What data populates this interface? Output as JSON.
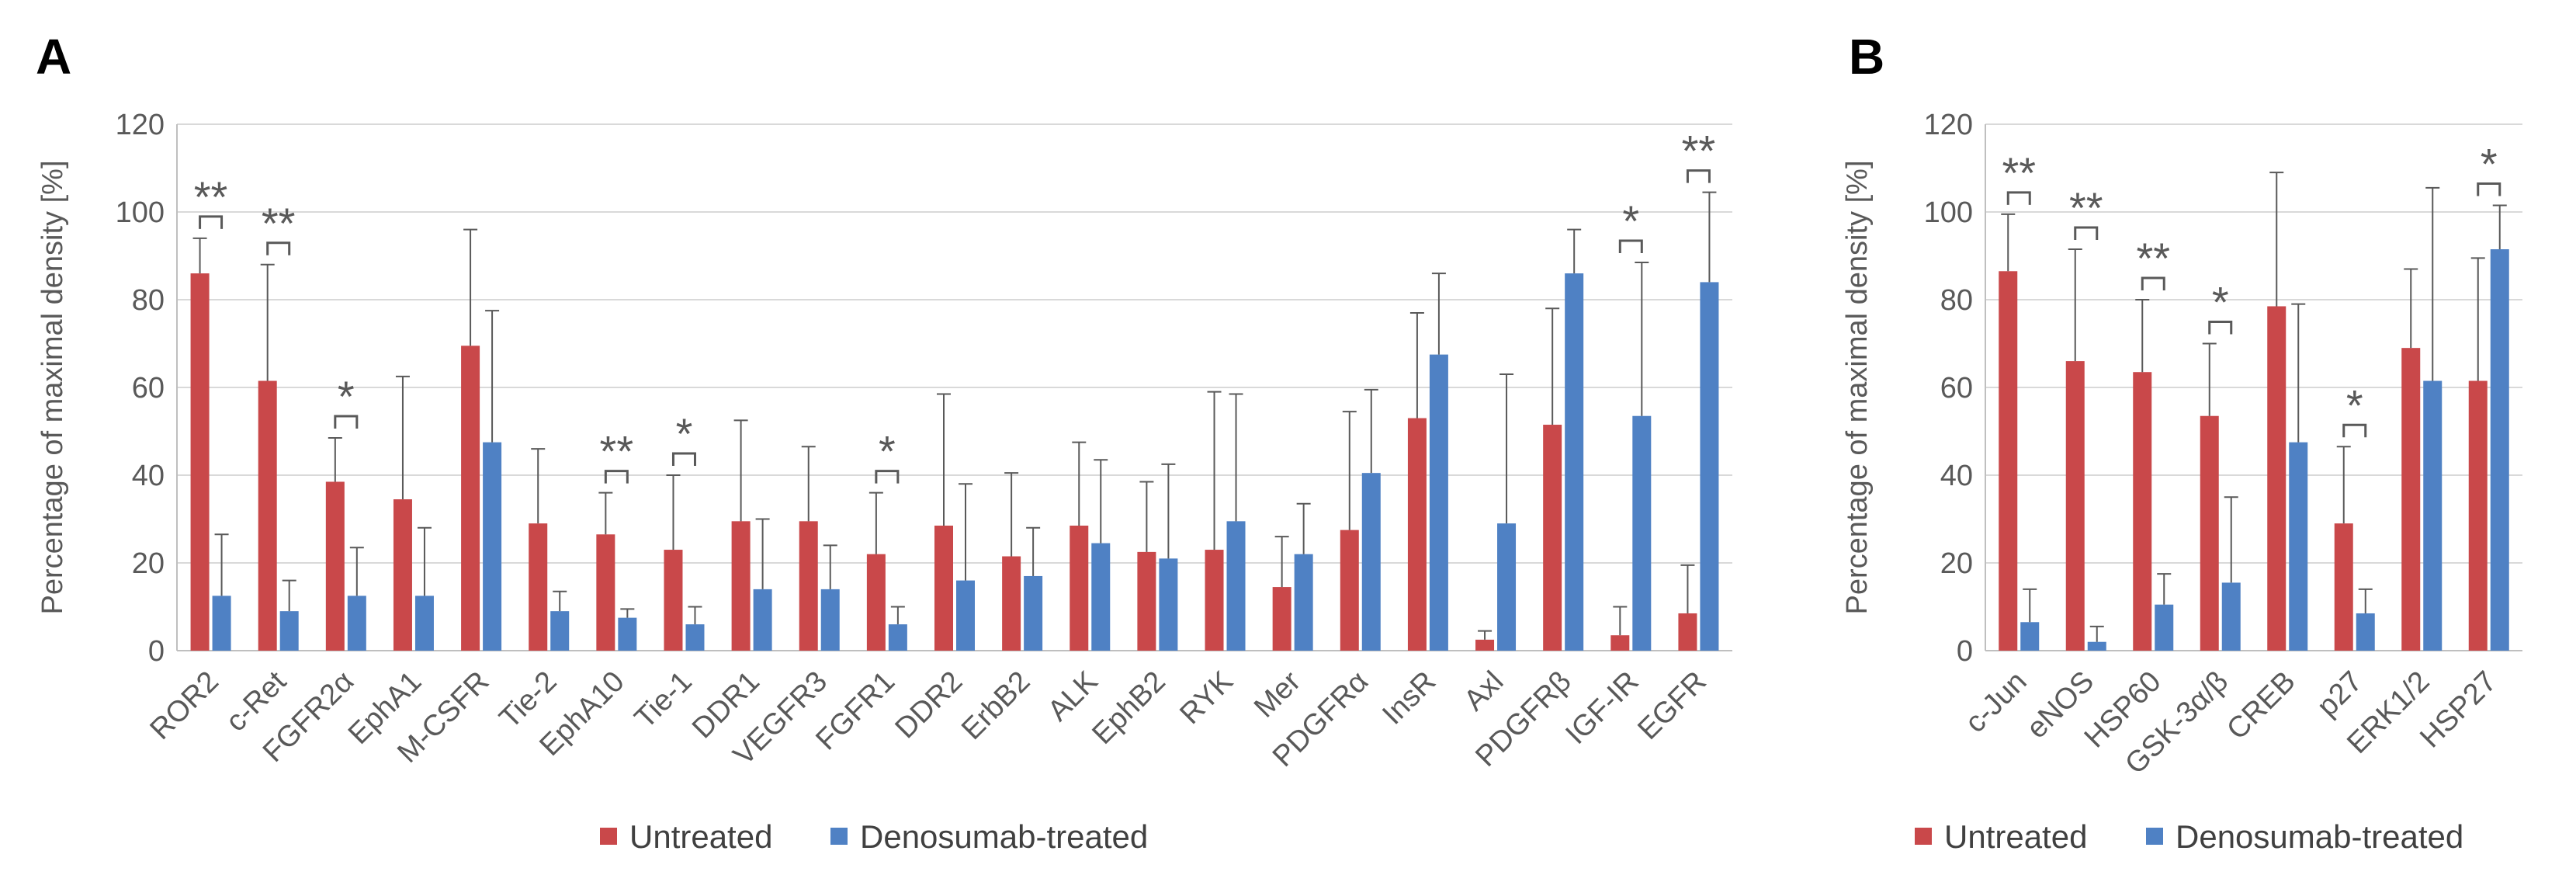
{
  "colors": {
    "untreated": "#c9484a",
    "treated": "#4f81c4",
    "grid": "#d9d9d9",
    "axis": "#bfbfbf",
    "errbar": "#595959",
    "text": "#595959"
  },
  "chart_data": [
    {
      "panel": "A",
      "type": "bar",
      "ylabel": "Percentage of maximal density [%]",
      "ylim": [
        0,
        120
      ],
      "yticks": [
        "0",
        "20",
        "40",
        "60",
        "80",
        "100",
        "120"
      ],
      "grid": true,
      "legend_position": "bottom",
      "categories": [
        "ROR2",
        "c-Ret",
        "FGFR2α",
        "EphA1",
        "M-CSFR",
        "Tie-2",
        "EphA10",
        "Tie-1",
        "DDR1",
        "VEGFR3",
        "FGFR1",
        "DDR2",
        "ErbB2",
        "ALK",
        "EphB2",
        "RYK",
        "Mer",
        "PDGFRα",
        "InsR",
        "Axl",
        "PDGFRβ",
        "IGF-IR",
        "EGFR"
      ],
      "series": [
        {
          "name": "Untreated",
          "values": [
            86,
            61.5,
            38.5,
            34.5,
            69.5,
            29,
            26.5,
            23,
            29.5,
            29.5,
            22,
            28.5,
            21.5,
            28.5,
            22.5,
            23,
            14.5,
            27.5,
            53,
            2.5,
            51.5,
            3.5,
            8.5
          ],
          "errors": [
            8,
            26.5,
            10,
            28,
            26.5,
            17,
            9.5,
            17,
            23,
            17,
            14,
            30,
            19,
            19,
            16,
            36,
            11.5,
            27,
            24,
            2,
            26.5,
            6.5,
            11
          ]
        },
        {
          "name": "Denosumab-treated",
          "values": [
            12.5,
            9,
            12.5,
            12.5,
            47.5,
            9,
            7.5,
            6,
            14,
            14,
            6,
            16,
            17,
            24.5,
            21,
            29.5,
            22,
            40.5,
            67.5,
            29,
            86,
            53.5,
            84
          ],
          "errors": [
            14,
            7,
            11,
            15.5,
            30,
            4.5,
            2,
            4,
            16,
            10,
            4,
            22,
            11,
            19,
            21.5,
            29,
            11.5,
            19,
            18.5,
            34,
            10,
            35,
            20.5
          ]
        }
      ],
      "significance": [
        {
          "index": 0,
          "mark": "**"
        },
        {
          "index": 1,
          "mark": "**"
        },
        {
          "index": 2,
          "mark": "*"
        },
        {
          "index": 6,
          "mark": "**"
        },
        {
          "index": 7,
          "mark": "*"
        },
        {
          "index": 10,
          "mark": "*"
        },
        {
          "index": 21,
          "mark": "*"
        },
        {
          "index": 22,
          "mark": "**"
        }
      ]
    },
    {
      "panel": "B",
      "type": "bar",
      "ylabel": "Percentage of maximal density [%]",
      "ylim": [
        0,
        120
      ],
      "yticks": [
        "0",
        "20",
        "40",
        "60",
        "80",
        "100",
        "120"
      ],
      "grid": true,
      "legend_position": "bottom",
      "categories": [
        "c-Jun",
        "eNOS",
        "HSP60",
        "GSK-3α/β",
        "CREB",
        "p27",
        "ERK1/2",
        "HSP27"
      ],
      "series": [
        {
          "name": "Untreated",
          "values": [
            86.5,
            66,
            63.5,
            53.5,
            78.5,
            29,
            69,
            61.5
          ],
          "errors": [
            13,
            25.5,
            16.5,
            16.5,
            30.5,
            17.5,
            18,
            28
          ]
        },
        {
          "name": "Denosumab-treated",
          "values": [
            6.5,
            2,
            10.5,
            15.5,
            47.5,
            8.5,
            61.5,
            91.5
          ],
          "errors": [
            7.5,
            3.5,
            7,
            19.5,
            31.5,
            5.5,
            44,
            10
          ]
        }
      ],
      "significance": [
        {
          "index": 0,
          "mark": "**"
        },
        {
          "index": 1,
          "mark": "**"
        },
        {
          "index": 2,
          "mark": "**"
        },
        {
          "index": 3,
          "mark": "*"
        },
        {
          "index": 5,
          "mark": "*"
        },
        {
          "index": 7,
          "mark": "*"
        }
      ]
    }
  ]
}
